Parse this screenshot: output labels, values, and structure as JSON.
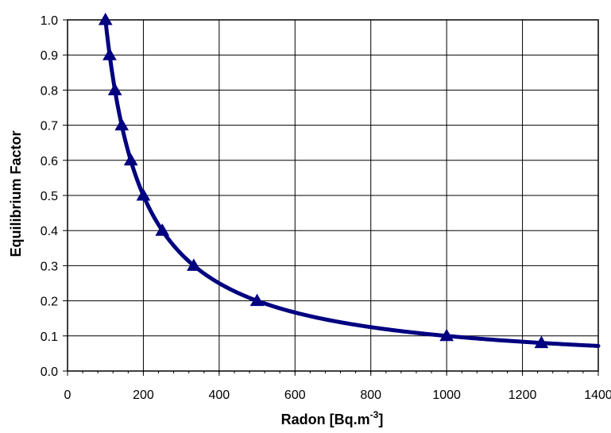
{
  "chart_data": {
    "type": "line",
    "title": "",
    "xlabel": "Radon [Bq.m",
    "xlabel_sup": "-3",
    "xlabel_suffix": "]",
    "ylabel": "Equilibrium Factor",
    "xlim": [
      0,
      1400
    ],
    "ylim": [
      0,
      1
    ],
    "x_ticks": [
      0,
      200,
      400,
      600,
      800,
      1000,
      1200,
      1400
    ],
    "y_ticks": [
      0,
      0.1,
      0.2,
      0.3,
      0.4,
      0.5,
      0.6,
      0.7,
      0.8,
      0.9,
      1
    ],
    "x_tick_labels": [
      "0",
      "200",
      "400",
      "600",
      "800",
      "1000",
      "1200",
      "1400"
    ],
    "y_tick_labels": [
      "0.0",
      "0.1",
      "0.2",
      "0.3",
      "0.4",
      "0.5",
      "0.6",
      "0.7",
      "0.8",
      "0.9",
      "1.0"
    ],
    "grid": true,
    "legend": "none",
    "series": [
      {
        "color": "#000080",
        "marker": "triangle",
        "x": [
          100,
          111,
          125,
          143,
          167,
          200,
          250,
          333,
          500,
          1000,
          1250
        ],
        "y": [
          1.0,
          0.9,
          0.8,
          0.7,
          0.6,
          0.5,
          0.4,
          0.3,
          0.2,
          0.1,
          0.08
        ]
      }
    ]
  }
}
